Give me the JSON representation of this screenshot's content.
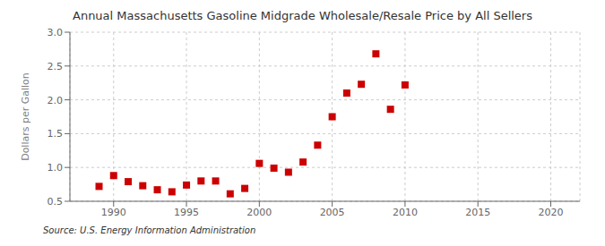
{
  "chart_data": {
    "type": "scatter",
    "title": "Annual Massachusetts Gasoline Midgrade Wholesale/Resale Price by All Sellers",
    "ylabel": "Dollars per Gallon",
    "source": "Source: U.S. Energy Information Administration",
    "x": [
      1989,
      1990,
      1991,
      1992,
      1993,
      1994,
      1995,
      1996,
      1997,
      1998,
      1999,
      2000,
      2001,
      2002,
      2003,
      2004,
      2005,
      2006,
      2007,
      2008,
      2009,
      2010
    ],
    "values": [
      0.72,
      0.88,
      0.79,
      0.73,
      0.67,
      0.64,
      0.74,
      0.8,
      0.8,
      0.61,
      0.69,
      1.06,
      0.99,
      0.93,
      1.08,
      1.33,
      1.75,
      2.1,
      2.23,
      2.68,
      1.86,
      2.22
    ],
    "color": "#cc0000",
    "marker": "square",
    "xlim": [
      1987,
      2022
    ],
    "ylim": [
      0.5,
      3.0
    ],
    "xticks": [
      1990,
      1995,
      2000,
      2005,
      2010,
      2015,
      2020
    ],
    "yticks": [
      0.5,
      {
        "value": 1,
        "label": "1.0"
      },
      1.5,
      {
        "value": 2,
        "label": "2.0"
      },
      2.5,
      {
        "value": 3,
        "label": "3.0"
      }
    ],
    "grid": true
  }
}
